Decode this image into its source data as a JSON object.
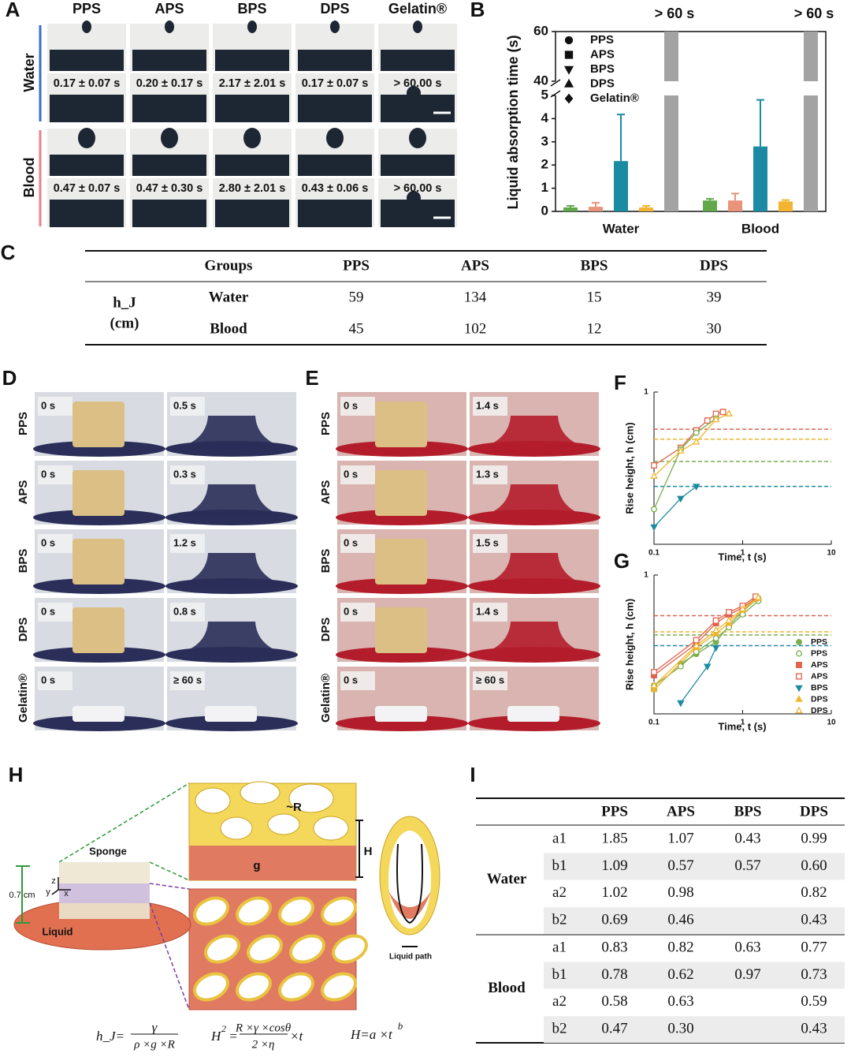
{
  "panel_labels": [
    "A",
    "B",
    "C",
    "D",
    "E",
    "F",
    "G",
    "H",
    "I"
  ],
  "panel_a": {
    "columns": [
      "PPS",
      "APS",
      "BPS",
      "DPS",
      "Gelatin®"
    ],
    "rows": [
      {
        "label": "Water",
        "times": [
          "0.17 ± 0.07 s",
          "0.20 ± 0.17 s",
          "2.17 ± 2.01 s",
          "0.17 ± 0.07 s",
          "> 60.00 s"
        ]
      },
      {
        "label": "Blood",
        "times": [
          "0.47 ± 0.07 s",
          "0.47 ± 0.30 s",
          "2.80 ± 2.01 s",
          "0.43 ± 0.06 s",
          "> 60.00 s"
        ]
      }
    ]
  },
  "chart_data": [
    {
      "type": "bar",
      "y_label": "Liquid absorption time (s)",
      "categories": [
        "Water",
        "Blood"
      ],
      "series": [
        {
          "name": "PPS",
          "color": "#62a94c",
          "marker": "circle",
          "values": [
            0.17,
            0.47
          ],
          "errors": [
            0.07,
            0.07
          ]
        },
        {
          "name": "APS",
          "color": "#e8937a",
          "marker": "square",
          "values": [
            0.2,
            0.47
          ],
          "errors": [
            0.17,
            0.3
          ]
        },
        {
          "name": "BPS",
          "color": "#1b8ba3",
          "marker": "triangle-down",
          "values": [
            2.17,
            2.8
          ],
          "errors": [
            2.01,
            2.01
          ]
        },
        {
          "name": "DPS",
          "color": "#f2b431",
          "marker": "triangle-up",
          "values": [
            0.17,
            0.43
          ],
          "errors": [
            0.07,
            0.06
          ]
        },
        {
          "name": "Gelatin®",
          "color": "#a3a3a3",
          "marker": "diamond",
          "values": [
            60,
            60
          ],
          "value_labels": [
            "> 60 s",
            "> 60 s"
          ]
        }
      ],
      "ylim": [
        0,
        60
      ],
      "axis_break": [
        5,
        40
      ],
      "yticks": [
        0,
        1,
        2,
        3,
        4,
        5,
        40,
        60
      ]
    },
    {
      "type": "line",
      "x_label": "Time, t (s)",
      "y_label": "Rise height, h (cm)",
      "log_x": true,
      "log_y": true,
      "xlim": [
        0.1,
        10
      ],
      "xticks": [
        0.1,
        1,
        10
      ],
      "ylim": [
        0.1,
        1
      ],
      "yticks": [
        1
      ],
      "reference_lines": [
        {
          "color": "#e0634c",
          "value": 0.57
        },
        {
          "color": "#efb42c",
          "value": 0.49
        },
        {
          "color": "#7aae4e",
          "value": 0.35
        },
        {
          "color": "#1b8ba3",
          "value": 0.24
        }
      ],
      "series": [
        {
          "color": "#e0634c",
          "marker": "square",
          "filled": false,
          "x": [
            0.1,
            0.2,
            0.3,
            0.4,
            0.5,
            0.6
          ],
          "values": [
            0.33,
            0.43,
            0.56,
            0.65,
            0.72,
            0.74
          ]
        },
        {
          "color": "#7aae4e",
          "marker": "circle",
          "filled": false,
          "x": [
            0.1,
            0.2,
            0.3,
            0.5
          ],
          "values": [
            0.17,
            0.42,
            0.54,
            0.67
          ]
        },
        {
          "color": "#efb42c",
          "marker": "triangle-up",
          "filled": false,
          "x": [
            0.1,
            0.2,
            0.3,
            0.5,
            0.7
          ],
          "values": [
            0.28,
            0.41,
            0.47,
            0.66,
            0.72
          ]
        },
        {
          "color": "#1b8ba3",
          "marker": "triangle-down",
          "filled": true,
          "x": [
            0.1,
            0.2,
            0.3
          ],
          "values": [
            0.13,
            0.2,
            0.24
          ]
        }
      ]
    },
    {
      "type": "line",
      "x_label": "Time, t (s)",
      "y_label": "Rise height, h (cm)",
      "log_x": true,
      "log_y": true,
      "xlim": [
        0.1,
        10
      ],
      "xticks": [
        0.1,
        1,
        10
      ],
      "ylim": [
        0.1,
        1
      ],
      "yticks": [
        1
      ],
      "reference_lines": [
        {
          "color": "#e0634c",
          "value": 0.51
        },
        {
          "color": "#efb42c",
          "value": 0.39
        },
        {
          "color": "#7aae4e",
          "value": 0.37
        },
        {
          "color": "#1b8ba3",
          "value": 0.31
        }
      ],
      "series": [
        {
          "name": "PPS",
          "color": "#7aae4e",
          "marker": "circle",
          "filled": true,
          "x": [
            0.1,
            0.2,
            0.3,
            0.5,
            0.7,
            1,
            1.5
          ],
          "values": [
            0.15,
            0.23,
            0.27,
            0.33,
            0.43,
            0.55,
            0.68
          ]
        },
        {
          "name": "PPS",
          "color": "#7aae4e",
          "marker": "circle",
          "filled": false,
          "x": [
            0.1,
            0.2,
            0.3,
            0.5,
            0.7,
            1,
            1.5
          ],
          "values": [
            0.16,
            0.22,
            0.28,
            0.35,
            0.42,
            0.52,
            0.65
          ]
        },
        {
          "name": "APS",
          "color": "#e0634c",
          "marker": "square",
          "filled": true,
          "x": [
            0.1,
            0.3,
            0.5,
            0.7,
            1,
            1.4
          ],
          "values": [
            0.19,
            0.32,
            0.45,
            0.52,
            0.58,
            0.68
          ]
        },
        {
          "name": "APS",
          "color": "#e0634c",
          "marker": "square",
          "filled": false,
          "x": [
            0.1,
            0.3,
            0.5,
            0.7,
            1,
            1.4
          ],
          "values": [
            0.2,
            0.34,
            0.47,
            0.54,
            0.6,
            0.7
          ]
        },
        {
          "name": "BPS",
          "color": "#1b8ba3",
          "marker": "triangle-down",
          "filled": true,
          "x": [
            0.2,
            0.4,
            0.5
          ],
          "values": [
            0.12,
            0.22,
            0.3
          ]
        },
        {
          "name": "DPS",
          "color": "#efb42c",
          "marker": "triangle-up",
          "filled": true,
          "x": [
            0.1,
            0.3,
            0.5,
            0.7,
            1,
            1.5
          ],
          "values": [
            0.15,
            0.3,
            0.38,
            0.45,
            0.56,
            0.68
          ]
        },
        {
          "name": "DPS",
          "color": "#efb42c",
          "marker": "triangle-up",
          "filled": false,
          "x": [
            0.1,
            0.3,
            0.5,
            0.7,
            1,
            1.5
          ],
          "values": [
            0.16,
            0.31,
            0.4,
            0.47,
            0.57,
            0.69
          ]
        }
      ]
    }
  ],
  "table_c": {
    "header": [
      "Groups",
      "PPS",
      "APS",
      "BPS",
      "DPS"
    ],
    "row_header": [
      "h_J",
      "(cm)"
    ],
    "rows": [
      [
        "Water",
        59,
        134,
        15,
        39
      ],
      [
        "Blood",
        45,
        102,
        12,
        30
      ]
    ]
  },
  "panel_d": {
    "rows": [
      {
        "label": "PPS",
        "start": "0 s",
        "end": "0.5 s"
      },
      {
        "label": "APS",
        "start": "0 s",
        "end": "0.3 s"
      },
      {
        "label": "BPS",
        "start": "0 s",
        "end": "1.2 s"
      },
      {
        "label": "DPS",
        "start": "0 s",
        "end": "0.8 s"
      },
      {
        "label": "Gelatin®",
        "start": "0 s",
        "end": "≥ 60 s"
      }
    ]
  },
  "panel_e": {
    "rows": [
      {
        "label": "PPS",
        "start": "0 s",
        "end": "1.4 s"
      },
      {
        "label": "APS",
        "start": "0 s",
        "end": "1.3 s"
      },
      {
        "label": "BPS",
        "start": "0 s",
        "end": "1.5 s"
      },
      {
        "label": "DPS",
        "start": "0 s",
        "end": "1.4 s"
      },
      {
        "label": "Gelatin®",
        "start": "0 s",
        "end": "≥ 60 s"
      }
    ]
  },
  "diagram_h": {
    "labels": {
      "radius": "~R",
      "gravity": "g",
      "height": "H",
      "sponge": "Sponge",
      "thickness": "0.7 cm",
      "axis_z": "z",
      "axis_y": "y",
      "axis_x": "x",
      "liquid": "Liquid",
      "liquid_path": "Liquid path"
    },
    "formulas": [
      {
        "lhs": "h_J=",
        "numerator": "γ",
        "denominator": "ρ ×g ×R"
      },
      {
        "lhs": "H",
        "lhs_power": "2",
        "equals": "=",
        "numerator": "R ×γ ×cosθ",
        "denominator": "2 ×η",
        "rhs": "×t"
      },
      {
        "lhs": "H=a ×t",
        "power": "b"
      }
    ]
  },
  "table_i": {
    "header": [
      "PPS",
      "APS",
      "BPS",
      "DPS"
    ],
    "groups": [
      {
        "label": "Water",
        "rows": [
          {
            "param": "a1",
            "values": [
              "1.85",
              "1.07",
              "0.43",
              "0.99"
            ]
          },
          {
            "param": "b1",
            "values": [
              "1.09",
              "0.57",
              "0.57",
              "0.60"
            ]
          },
          {
            "param": "a2",
            "values": [
              "1.02",
              "0.98",
              null,
              "0.82"
            ]
          },
          {
            "param": "b2",
            "values": [
              "0.69",
              "0.46",
              null,
              "0.43"
            ]
          }
        ]
      },
      {
        "label": "Blood",
        "rows": [
          {
            "param": "a1",
            "values": [
              "0.83",
              "0.82",
              "0.63",
              "0.77"
            ]
          },
          {
            "param": "b1",
            "values": [
              "0.78",
              "0.62",
              "0.97",
              "0.73"
            ]
          },
          {
            "param": "a2",
            "values": [
              "0.58",
              "0.63",
              null,
              "0.59"
            ]
          },
          {
            "param": "b2",
            "values": [
              "0.47",
              "0.30",
              null,
              "0.43"
            ]
          }
        ]
      }
    ]
  }
}
